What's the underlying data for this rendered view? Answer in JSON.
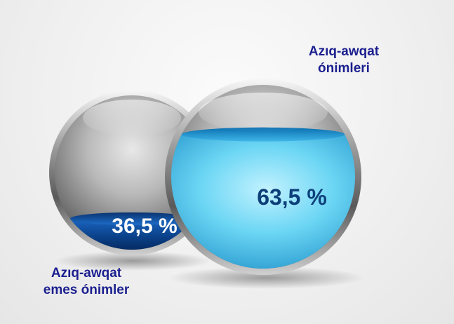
{
  "chart_data": {
    "type": "pie",
    "title": "",
    "series": [
      {
        "name": "Azıq-awqat emes ónimler",
        "label_lines": [
          "Azıq-awqat",
          "emes ónimler"
        ],
        "value": 36.5,
        "value_label": "36,5 %",
        "fill_color": "#0d4f9c"
      },
      {
        "name": "Azıq-awqat ónimleri",
        "label_lines": [
          "Azıq-awqat",
          "ónimleri"
        ],
        "value": 63.5,
        "value_label": "63,5 %",
        "fill_color": "#5fd0f0"
      }
    ],
    "legend": "none",
    "grid": false
  }
}
